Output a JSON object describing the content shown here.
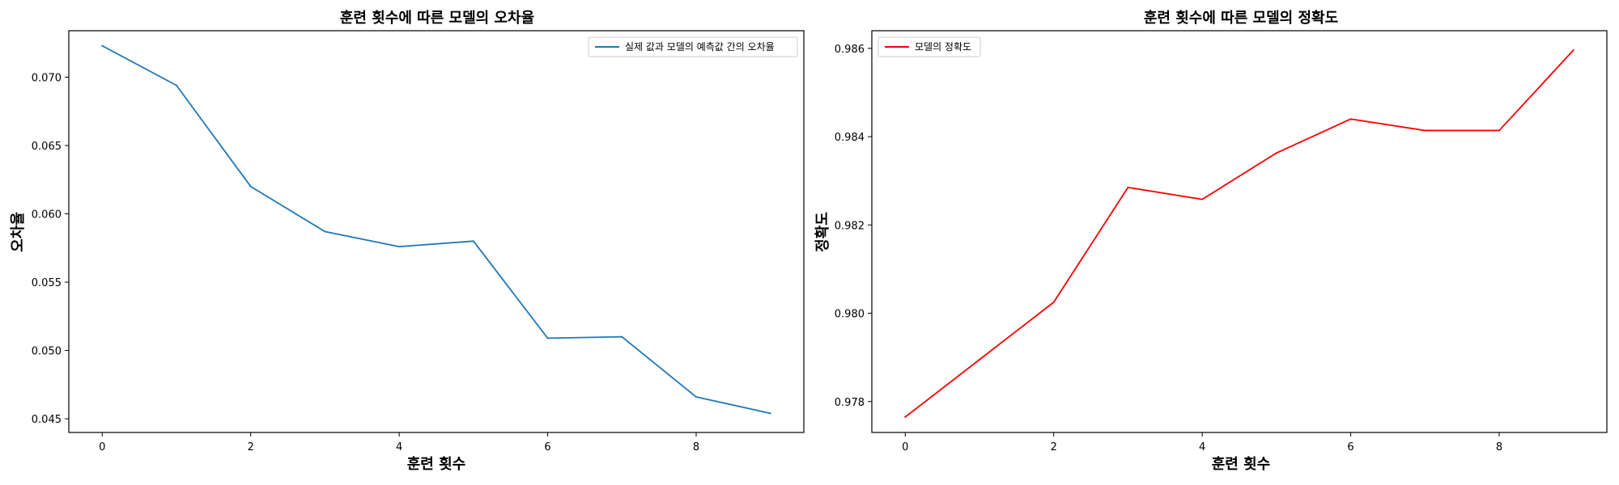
{
  "chart_data": [
    {
      "type": "line",
      "title": "훈련 횟수에 따른 모델의 오차율",
      "xlabel": "훈련 횟수",
      "ylabel": "오차율",
      "x": [
        0,
        1,
        2,
        3,
        4,
        5,
        6,
        7,
        8,
        9
      ],
      "series": [
        {
          "name": "실제 값과 모델의 예측값 간의 오차율",
          "color": "#1f77b4",
          "values": [
            0.0723,
            0.0694,
            0.062,
            0.0587,
            0.0576,
            0.058,
            0.0509,
            0.051,
            0.0466,
            0.0454
          ]
        }
      ],
      "xlim": [
        -0.45,
        9.45
      ],
      "ylim": [
        0.044,
        0.0734
      ],
      "xticks": [
        0,
        2,
        4,
        6,
        8
      ],
      "xtick_labels": [
        "0",
        "2",
        "4",
        "6",
        "8"
      ],
      "yticks": [
        0.045,
        0.05,
        0.055,
        0.06,
        0.065,
        0.07
      ],
      "ytick_labels": [
        "0.045",
        "0.050",
        "0.055",
        "0.060",
        "0.065",
        "0.070"
      ],
      "grid": false,
      "legend_position": "top-right"
    },
    {
      "type": "line",
      "title": "훈련 횟수에 따른 모델의 정확도",
      "xlabel": "훈련 횟수",
      "ylabel": "정확도",
      "x": [
        0,
        1,
        2,
        3,
        4,
        5,
        6,
        7,
        8,
        9
      ],
      "series": [
        {
          "name": "모델의 정확도",
          "color": "#ff0000",
          "values": [
            0.97765,
            0.97895,
            0.98025,
            0.98285,
            0.98258,
            0.98363,
            0.9844,
            0.98414,
            0.98414,
            0.98596
          ]
        }
      ],
      "xlim": [
        -0.45,
        9.45
      ],
      "ylim": [
        0.9773,
        0.9864
      ],
      "xticks": [
        0,
        2,
        4,
        6,
        8
      ],
      "xtick_labels": [
        "0",
        "2",
        "4",
        "6",
        "8"
      ],
      "yticks": [
        0.978,
        0.98,
        0.982,
        0.984,
        0.986
      ],
      "ytick_labels": [
        "0.978",
        "0.980",
        "0.982",
        "0.984",
        "0.986"
      ],
      "grid": false,
      "legend_position": "top-left"
    }
  ]
}
